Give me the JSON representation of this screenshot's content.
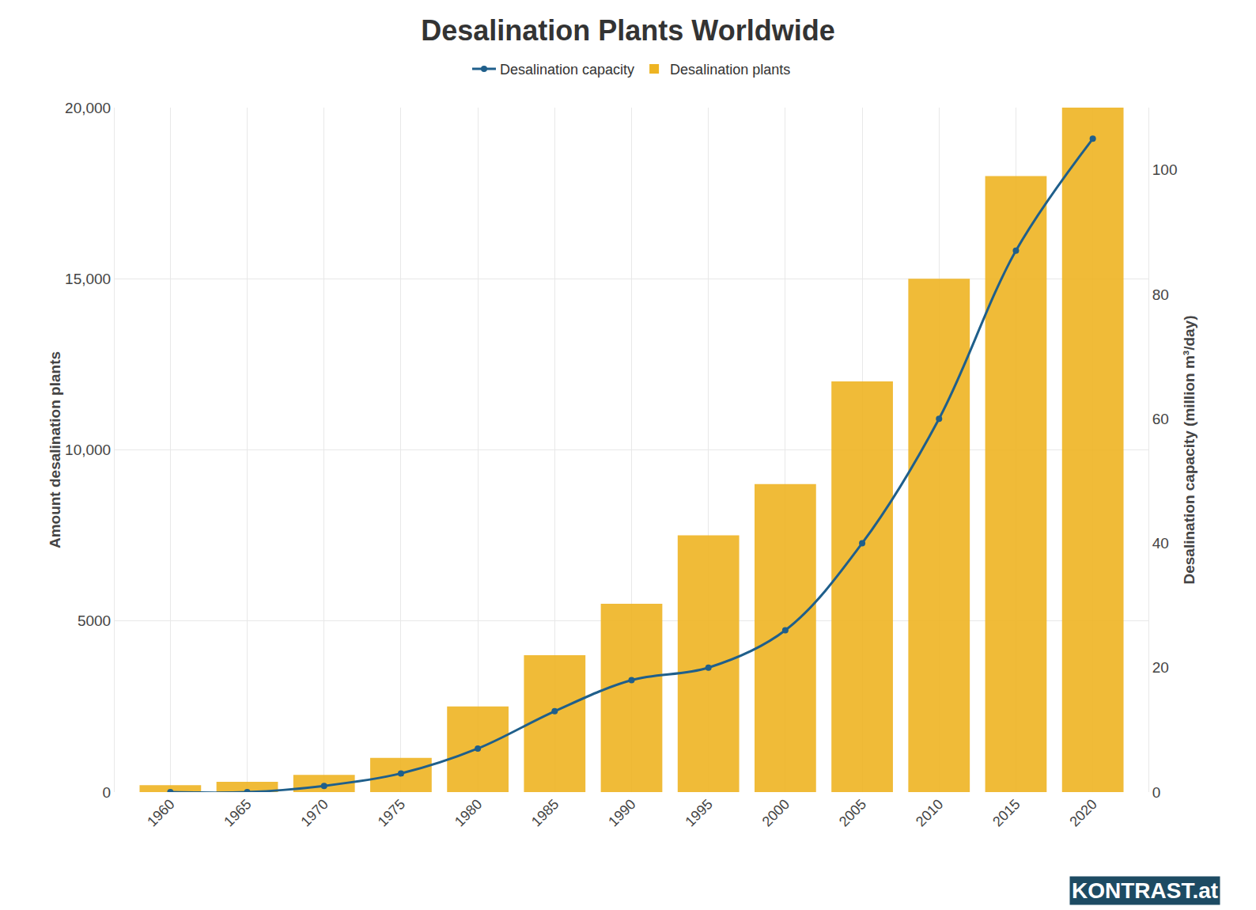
{
  "chart_data": {
    "type": "bar",
    "title": "Desalination Plants Worldwide",
    "categories": [
      "1960",
      "1965",
      "1970",
      "1975",
      "1980",
      "1985",
      "1990",
      "1995",
      "2000",
      "2005",
      "2010",
      "2015",
      "2020"
    ],
    "series": [
      {
        "name": "Desalination capacity",
        "type": "line",
        "axis": "y2",
        "color": "#1f5f8b",
        "marker": "circle",
        "line_style": "spline",
        "values": [
          0,
          0,
          1,
          3,
          7,
          13,
          18,
          20,
          26,
          40,
          60,
          87,
          105
        ]
      },
      {
        "name": "Desalination plants",
        "type": "bar",
        "color": "#eeb422",
        "values": [
          200,
          300,
          500,
          1000,
          2500,
          4000,
          5500,
          7500,
          9000,
          12000,
          15000,
          18000,
          20000
        ]
      }
    ],
    "y_label": "Amount desalination plants",
    "y2_label": "Desalination capacity (million m³/day)",
    "ylim": [
      0,
      20000
    ],
    "yticks": [
      0,
      5000,
      {
        "value": 10000,
        "label": "10,000"
      },
      {
        "value": 15000,
        "label": "15,000"
      },
      {
        "value": 20000,
        "label": "20,000"
      }
    ],
    "y2lim": [
      0,
      110
    ],
    "y2ticks": [
      0,
      20,
      40,
      60,
      80,
      100
    ],
    "grid": true,
    "legend": "top",
    "source": "KONTRAST.at"
  }
}
